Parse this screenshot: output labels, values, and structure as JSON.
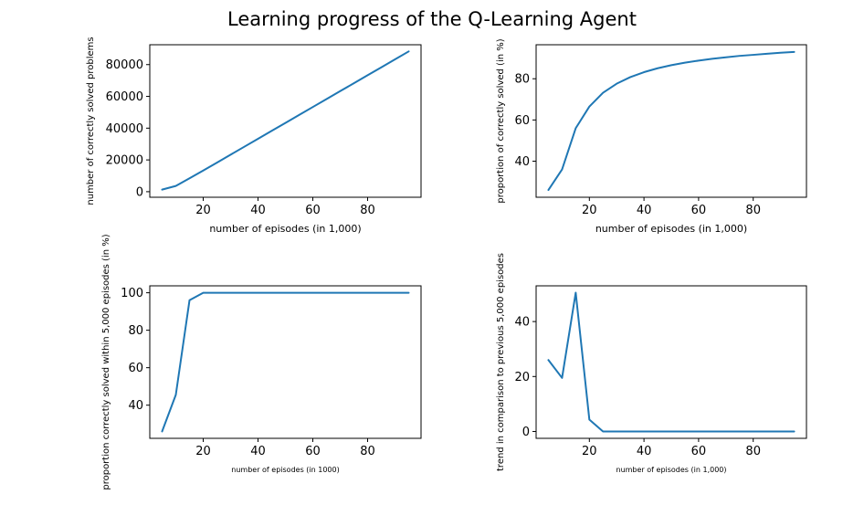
{
  "figure": {
    "title": "Learning progress of the Q-Learning Agent",
    "line_color": "#1f77b4"
  },
  "chart_data": [
    {
      "type": "line",
      "xlabel": "number of episodes (in 1,000)",
      "ylabel": "number of correctly solved problems",
      "xlim": [
        0.5,
        99.5
      ],
      "ylim": [
        -3500,
        92500
      ],
      "xticks": [
        20,
        40,
        60,
        80
      ],
      "yticks": [
        0,
        20000,
        40000,
        60000,
        80000
      ],
      "xtick_labels": [
        "20",
        "40",
        "60",
        "80"
      ],
      "ytick_labels": [
        "0",
        "20000",
        "40000",
        "60000",
        "80000"
      ],
      "x": [
        5,
        10,
        15,
        20,
        25,
        30,
        35,
        40,
        45,
        50,
        55,
        60,
        65,
        70,
        75,
        80,
        85,
        90,
        95
      ],
      "y": [
        1300,
        3600,
        8400,
        13300,
        18300,
        23300,
        28300,
        33300,
        38300,
        43300,
        48300,
        53300,
        58300,
        63300,
        68300,
        73300,
        78300,
        83300,
        88300
      ],
      "grid": false
    },
    {
      "type": "line",
      "xlabel": "number of episodes (in 1,000)",
      "ylabel": "proportion of correctly solved (in %)",
      "xlim": [
        0.5,
        99.5
      ],
      "ylim": [
        22.5,
        96.5
      ],
      "xticks": [
        20,
        40,
        60,
        80
      ],
      "yticks": [
        40,
        60,
        80
      ],
      "xtick_labels": [
        "20",
        "40",
        "60",
        "80"
      ],
      "ytick_labels": [
        "40",
        "60",
        "80"
      ],
      "x": [
        5,
        10,
        15,
        20,
        25,
        30,
        35,
        40,
        45,
        50,
        55,
        60,
        65,
        70,
        75,
        80,
        85,
        90,
        95
      ],
      "y": [
        26,
        36,
        56,
        66.5,
        73.2,
        77.6,
        80.8,
        83.2,
        85.1,
        86.6,
        87.8,
        88.8,
        89.7,
        90.4,
        91.1,
        91.6,
        92.1,
        92.6,
        93
      ],
      "grid": false
    },
    {
      "type": "line",
      "xlabel": "number of episodes (in 1000)",
      "ylabel": "proportion correctly solved within 5,000 episodes (in %)",
      "xlim": [
        0.5,
        99.5
      ],
      "ylim": [
        22.3,
        103.7
      ],
      "xticks": [
        20,
        40,
        60,
        80
      ],
      "yticks": [
        40,
        60,
        80,
        100
      ],
      "xtick_labels": [
        "20",
        "40",
        "60",
        "80"
      ],
      "ytick_labels": [
        "40",
        "60",
        "80",
        "100"
      ],
      "x": [
        5,
        10,
        15,
        20,
        25,
        30,
        35,
        40,
        45,
        50,
        55,
        60,
        65,
        70,
        75,
        80,
        85,
        90,
        95
      ],
      "y": [
        26,
        45.5,
        96,
        100,
        100,
        100,
        100,
        100,
        100,
        100,
        100,
        100,
        100,
        100,
        100,
        100,
        100,
        100,
        100
      ],
      "grid": false
    },
    {
      "type": "line",
      "xlabel": "number of episodes (in 1,000)",
      "ylabel": "trend in comparison to previous 5,000 episodes",
      "xlim": [
        0.5,
        99.5
      ],
      "ylim": [
        -2.5,
        53
      ],
      "xticks": [
        20,
        40,
        60,
        80
      ],
      "yticks": [
        0,
        20,
        40
      ],
      "xtick_labels": [
        "20",
        "40",
        "60",
        "80"
      ],
      "ytick_labels": [
        "0",
        "20",
        "40"
      ],
      "x": [
        5,
        10,
        15,
        20,
        25,
        30,
        35,
        40,
        45,
        50,
        55,
        60,
        65,
        70,
        75,
        80,
        85,
        90,
        95
      ],
      "y": [
        26,
        19.5,
        50.5,
        4.3,
        0,
        0,
        0,
        0,
        0,
        0,
        0,
        0,
        0,
        0,
        0,
        0,
        0,
        0,
        0
      ],
      "grid": false
    }
  ]
}
